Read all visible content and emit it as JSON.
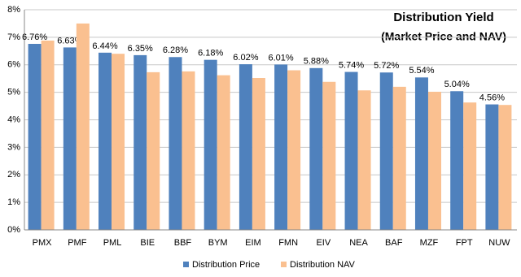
{
  "chart_data": {
    "type": "bar",
    "title": "Distribution  Yield",
    "subtitle": "(Market Price and NAV)",
    "categories": [
      "PMX",
      "PMF",
      "PML",
      "BIE",
      "BBF",
      "BYM",
      "EIM",
      "FMN",
      "EIV",
      "NEA",
      "BAF",
      "MZF",
      "FPT",
      "NUW"
    ],
    "series": [
      {
        "name": "Distribution Price",
        "color": "#4f81bd",
        "values": [
          6.76,
          6.63,
          6.44,
          6.35,
          6.28,
          6.18,
          6.02,
          6.01,
          5.88,
          5.74,
          5.72,
          5.54,
          5.04,
          4.56
        ],
        "value_labels": [
          "6.76%",
          "6.63%",
          "6.44%",
          "6.35%",
          "6.28%",
          "6.18%",
          "6.02%",
          "6.01%",
          "5.88%",
          "5.74%",
          "5.72%",
          "5.54%",
          "5.04%",
          "4.56%"
        ]
      },
      {
        "name": "Distribution NAV",
        "color": "#fac090",
        "values": [
          6.88,
          7.5,
          6.4,
          5.73,
          5.76,
          5.62,
          5.52,
          5.8,
          5.38,
          5.07,
          5.2,
          5.02,
          4.63,
          4.54
        ]
      }
    ],
    "ylim": [
      0,
      8
    ],
    "yticks": [
      {
        "value": 0,
        "label": "0%"
      },
      {
        "value": 1,
        "label": "1%"
      },
      {
        "value": 2,
        "label": "2%"
      },
      {
        "value": 3,
        "label": "3%"
      },
      {
        "value": 4,
        "label": "4%"
      },
      {
        "value": 5,
        "label": "5%"
      },
      {
        "value": 6,
        "label": "6%"
      },
      {
        "value": 7,
        "label": "7%"
      },
      {
        "value": 8,
        "label": "8%"
      }
    ],
    "grid": true,
    "legend": "bottom"
  }
}
